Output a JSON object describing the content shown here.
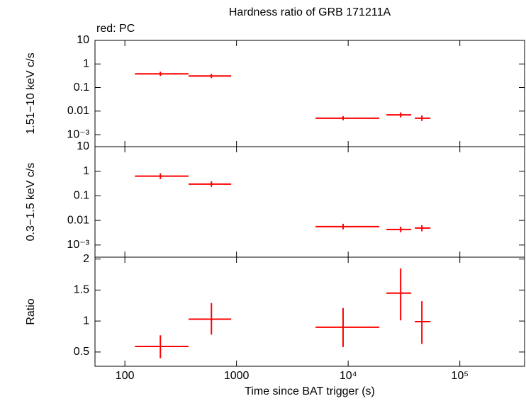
{
  "chart_data": [
    {
      "type": "errorbar",
      "title": "Hardness ratio of GRB 171211A",
      "annotation": "red: PC",
      "ylabel": "1.51−10 keV c/s",
      "xlog": true,
      "ylog": true,
      "xlim": [
        54,
        380000
      ],
      "ylim": [
        0.00031,
        10
      ],
      "xticks": [
        100,
        1000,
        {
          "value": 10000,
          "label": "10⁴"
        },
        {
          "value": 100000,
          "label": "10⁵"
        }
      ],
      "yticks": [
        10,
        1,
        0.1,
        0.01,
        {
          "value": 0.001,
          "label": "10⁻³"
        }
      ],
      "series": [
        {
          "color": "#ff0000",
          "x": [
            208,
            596,
            9000,
            29500,
            45700
          ],
          "x_lo": [
            123,
            372,
            5100,
            22000,
            39500
          ],
          "x_hi": [
            372,
            896,
            19000,
            36700,
            54500
          ],
          "values": [
            0.38,
            0.31,
            0.005,
            0.0069,
            0.005
          ],
          "y_lo": [
            0.31,
            0.25,
            0.0041,
            0.0054,
            0.0038
          ],
          "y_hi": [
            0.47,
            0.38,
            0.0061,
            0.0088,
            0.0066
          ]
        }
      ]
    },
    {
      "type": "errorbar",
      "ylabel": "0.3−1.5 keV c/s",
      "xlog": true,
      "ylog": true,
      "xlim": [
        54,
        380000
      ],
      "ylim": [
        0.00032,
        10
      ],
      "xticks": [
        100,
        1000,
        {
          "value": 10000,
          "label": "10⁴"
        },
        {
          "value": 100000,
          "label": "10⁵"
        }
      ],
      "yticks": [
        10,
        1,
        0.1,
        0.01,
        {
          "value": 0.001,
          "label": "10⁻³"
        }
      ],
      "series": [
        {
          "color": "#ff0000",
          "x": [
            208,
            596,
            9000,
            29500,
            45700
          ],
          "x_lo": [
            123,
            372,
            5100,
            22000,
            39500
          ],
          "x_hi": [
            372,
            896,
            19000,
            36700,
            54500
          ],
          "values": [
            0.63,
            0.3,
            0.0056,
            0.0043,
            0.0049
          ],
          "y_lo": [
            0.48,
            0.23,
            0.0043,
            0.0033,
            0.0036
          ],
          "y_hi": [
            0.82,
            0.39,
            0.0073,
            0.0056,
            0.0064
          ]
        }
      ]
    },
    {
      "type": "errorbar",
      "ylabel": "Ratio",
      "xlabel": "Time since BAT trigger (s)",
      "xlog": true,
      "ylog": false,
      "xlim": [
        54,
        380000
      ],
      "ylim": [
        0.27,
        2.03
      ],
      "xticks": [
        100,
        1000,
        {
          "value": 10000,
          "label": "10⁴"
        },
        {
          "value": 100000,
          "label": "10⁵"
        }
      ],
      "yticks": [
        0.5,
        1,
        1.5,
        2
      ],
      "series": [
        {
          "color": "#ff0000",
          "x": [
            208,
            596,
            9000,
            29500,
            45700
          ],
          "x_lo": [
            123,
            372,
            5100,
            22000,
            39500
          ],
          "x_hi": [
            372,
            896,
            19000,
            36700,
            54500
          ],
          "values": [
            0.59,
            1.03,
            0.9,
            1.45,
            0.99
          ],
          "y_lo": [
            0.4,
            0.78,
            0.58,
            1.01,
            0.63
          ],
          "y_hi": [
            0.77,
            1.29,
            1.21,
            1.85,
            1.32
          ]
        }
      ]
    }
  ]
}
